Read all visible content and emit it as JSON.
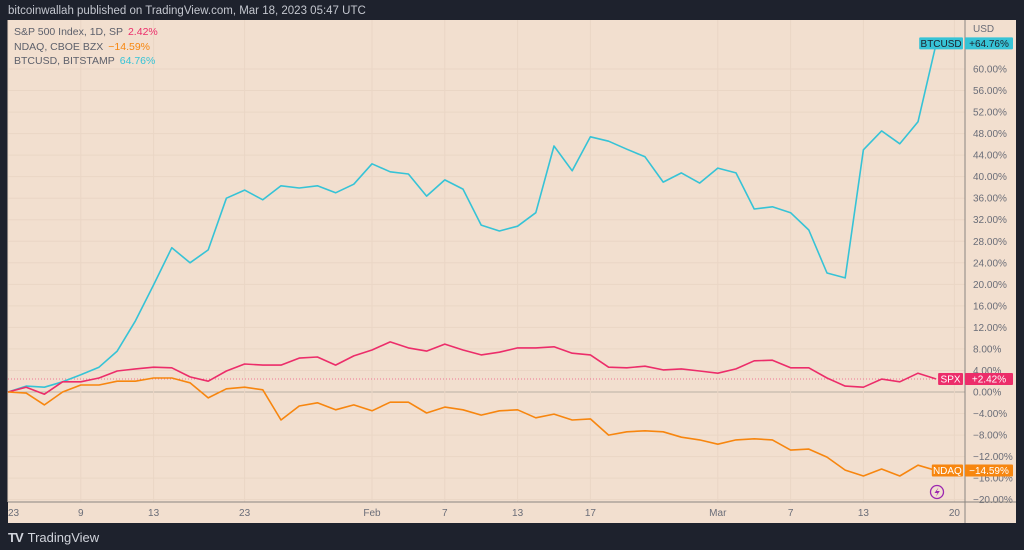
{
  "header": {
    "published": "bitcoinwallah published on TradingView.com, Mar 18, 2023 05:47 UTC"
  },
  "legend": [
    {
      "name": "S&P 500 Index, 1D, SP",
      "value": "2.42%",
      "color": "#ec2d6a"
    },
    {
      "name": "NDAQ, CBOE BZX",
      "value": "−14.59%",
      "color": "#f7860f"
    },
    {
      "name": "BTCUSD, BITSTAMP",
      "value": "64.76%",
      "color": "#36c3d6"
    }
  ],
  "footer": {
    "brand": "TradingView",
    "logo": "TV"
  },
  "icons": {
    "lightning": "lightning-icon"
  },
  "chart_data": {
    "type": "line",
    "ylabel": "USD",
    "ylim": [
      -20,
      66
    ],
    "yticks": [
      -20,
      -16,
      -12,
      -8,
      -4,
      0,
      4,
      8,
      12,
      16,
      20,
      24,
      28,
      32,
      36,
      40,
      44,
      48,
      52,
      56,
      60
    ],
    "ytick_suffix": "%",
    "xticks": [
      {
        "i": 0,
        "label": "23"
      },
      {
        "i": 4,
        "label": "9"
      },
      {
        "i": 8,
        "label": "13"
      },
      {
        "i": 13,
        "label": "23"
      },
      {
        "i": 20,
        "label": "Feb"
      },
      {
        "i": 24,
        "label": "7"
      },
      {
        "i": 28,
        "label": "13"
      },
      {
        "i": 32,
        "label": "17"
      },
      {
        "i": 39,
        "label": "Mar"
      },
      {
        "i": 43,
        "label": "7"
      },
      {
        "i": 47,
        "label": "13"
      },
      {
        "i": 52,
        "label": "20"
      }
    ],
    "grid": true,
    "legend_position": "top-left",
    "series": [
      {
        "name": "BTCUSD",
        "tag": "BTCUSD",
        "last_label": "+64.76%",
        "color": "#36c3d6",
        "values": [
          0,
          1.1,
          0.9,
          1.9,
          3.2,
          4.6,
          7.6,
          13.2,
          19.9,
          26.8,
          24.0,
          26.4,
          36.0,
          37.5,
          35.7,
          38.3,
          37.9,
          38.3,
          37.0,
          38.6,
          42.4,
          40.9,
          40.5,
          36.4,
          39.4,
          37.7,
          31.0,
          29.9,
          30.8,
          33.3,
          45.7,
          41.1,
          47.4,
          46.6,
          45.1,
          43.7,
          39.0,
          40.7,
          38.8,
          41.6,
          40.7,
          34.0,
          34.4,
          33.3,
          30.1,
          22.1,
          21.2,
          45.0,
          48.5,
          46.1,
          50.2,
          64.76
        ]
      },
      {
        "name": "SPX",
        "tag": "SPX",
        "last_label": "+2.42%",
        "color": "#ec2d6a",
        "values": [
          0,
          0.9,
          -0.4,
          1.9,
          1.9,
          2.6,
          3.9,
          4.3,
          4.6,
          4.5,
          2.8,
          2.0,
          3.9,
          5.2,
          5.0,
          5.0,
          6.3,
          6.5,
          5.0,
          6.7,
          7.8,
          9.3,
          8.2,
          7.6,
          8.9,
          7.8,
          6.9,
          7.4,
          8.2,
          8.2,
          8.4,
          7.2,
          6.9,
          4.6,
          4.5,
          4.8,
          4.1,
          4.3,
          3.9,
          3.5,
          4.3,
          5.8,
          5.9,
          4.5,
          4.5,
          2.6,
          1.1,
          0.9,
          2.4,
          1.9,
          3.5,
          2.42
        ]
      },
      {
        "name": "NDAQ",
        "tag": "NDAQ",
        "last_label": "−14.59%",
        "color": "#f7860f",
        "values": [
          0,
          -0.2,
          -2.4,
          0,
          1.3,
          1.3,
          2.0,
          2.0,
          2.6,
          2.6,
          1.7,
          -1.1,
          0.6,
          0.9,
          0.4,
          -5.2,
          -2.6,
          -2.0,
          -3.3,
          -2.4,
          -3.5,
          -1.9,
          -1.9,
          -3.9,
          -2.8,
          -3.3,
          -4.3,
          -3.5,
          -3.3,
          -4.8,
          -4.1,
          -5.2,
          -5.0,
          -8.0,
          -7.4,
          -7.2,
          -7.4,
          -8.4,
          -8.9,
          -9.7,
          -8.9,
          -8.7,
          -8.9,
          -10.8,
          -10.6,
          -12.1,
          -14.5,
          -15.6,
          -14.3,
          -15.6,
          -13.6,
          -14.59
        ]
      }
    ]
  }
}
